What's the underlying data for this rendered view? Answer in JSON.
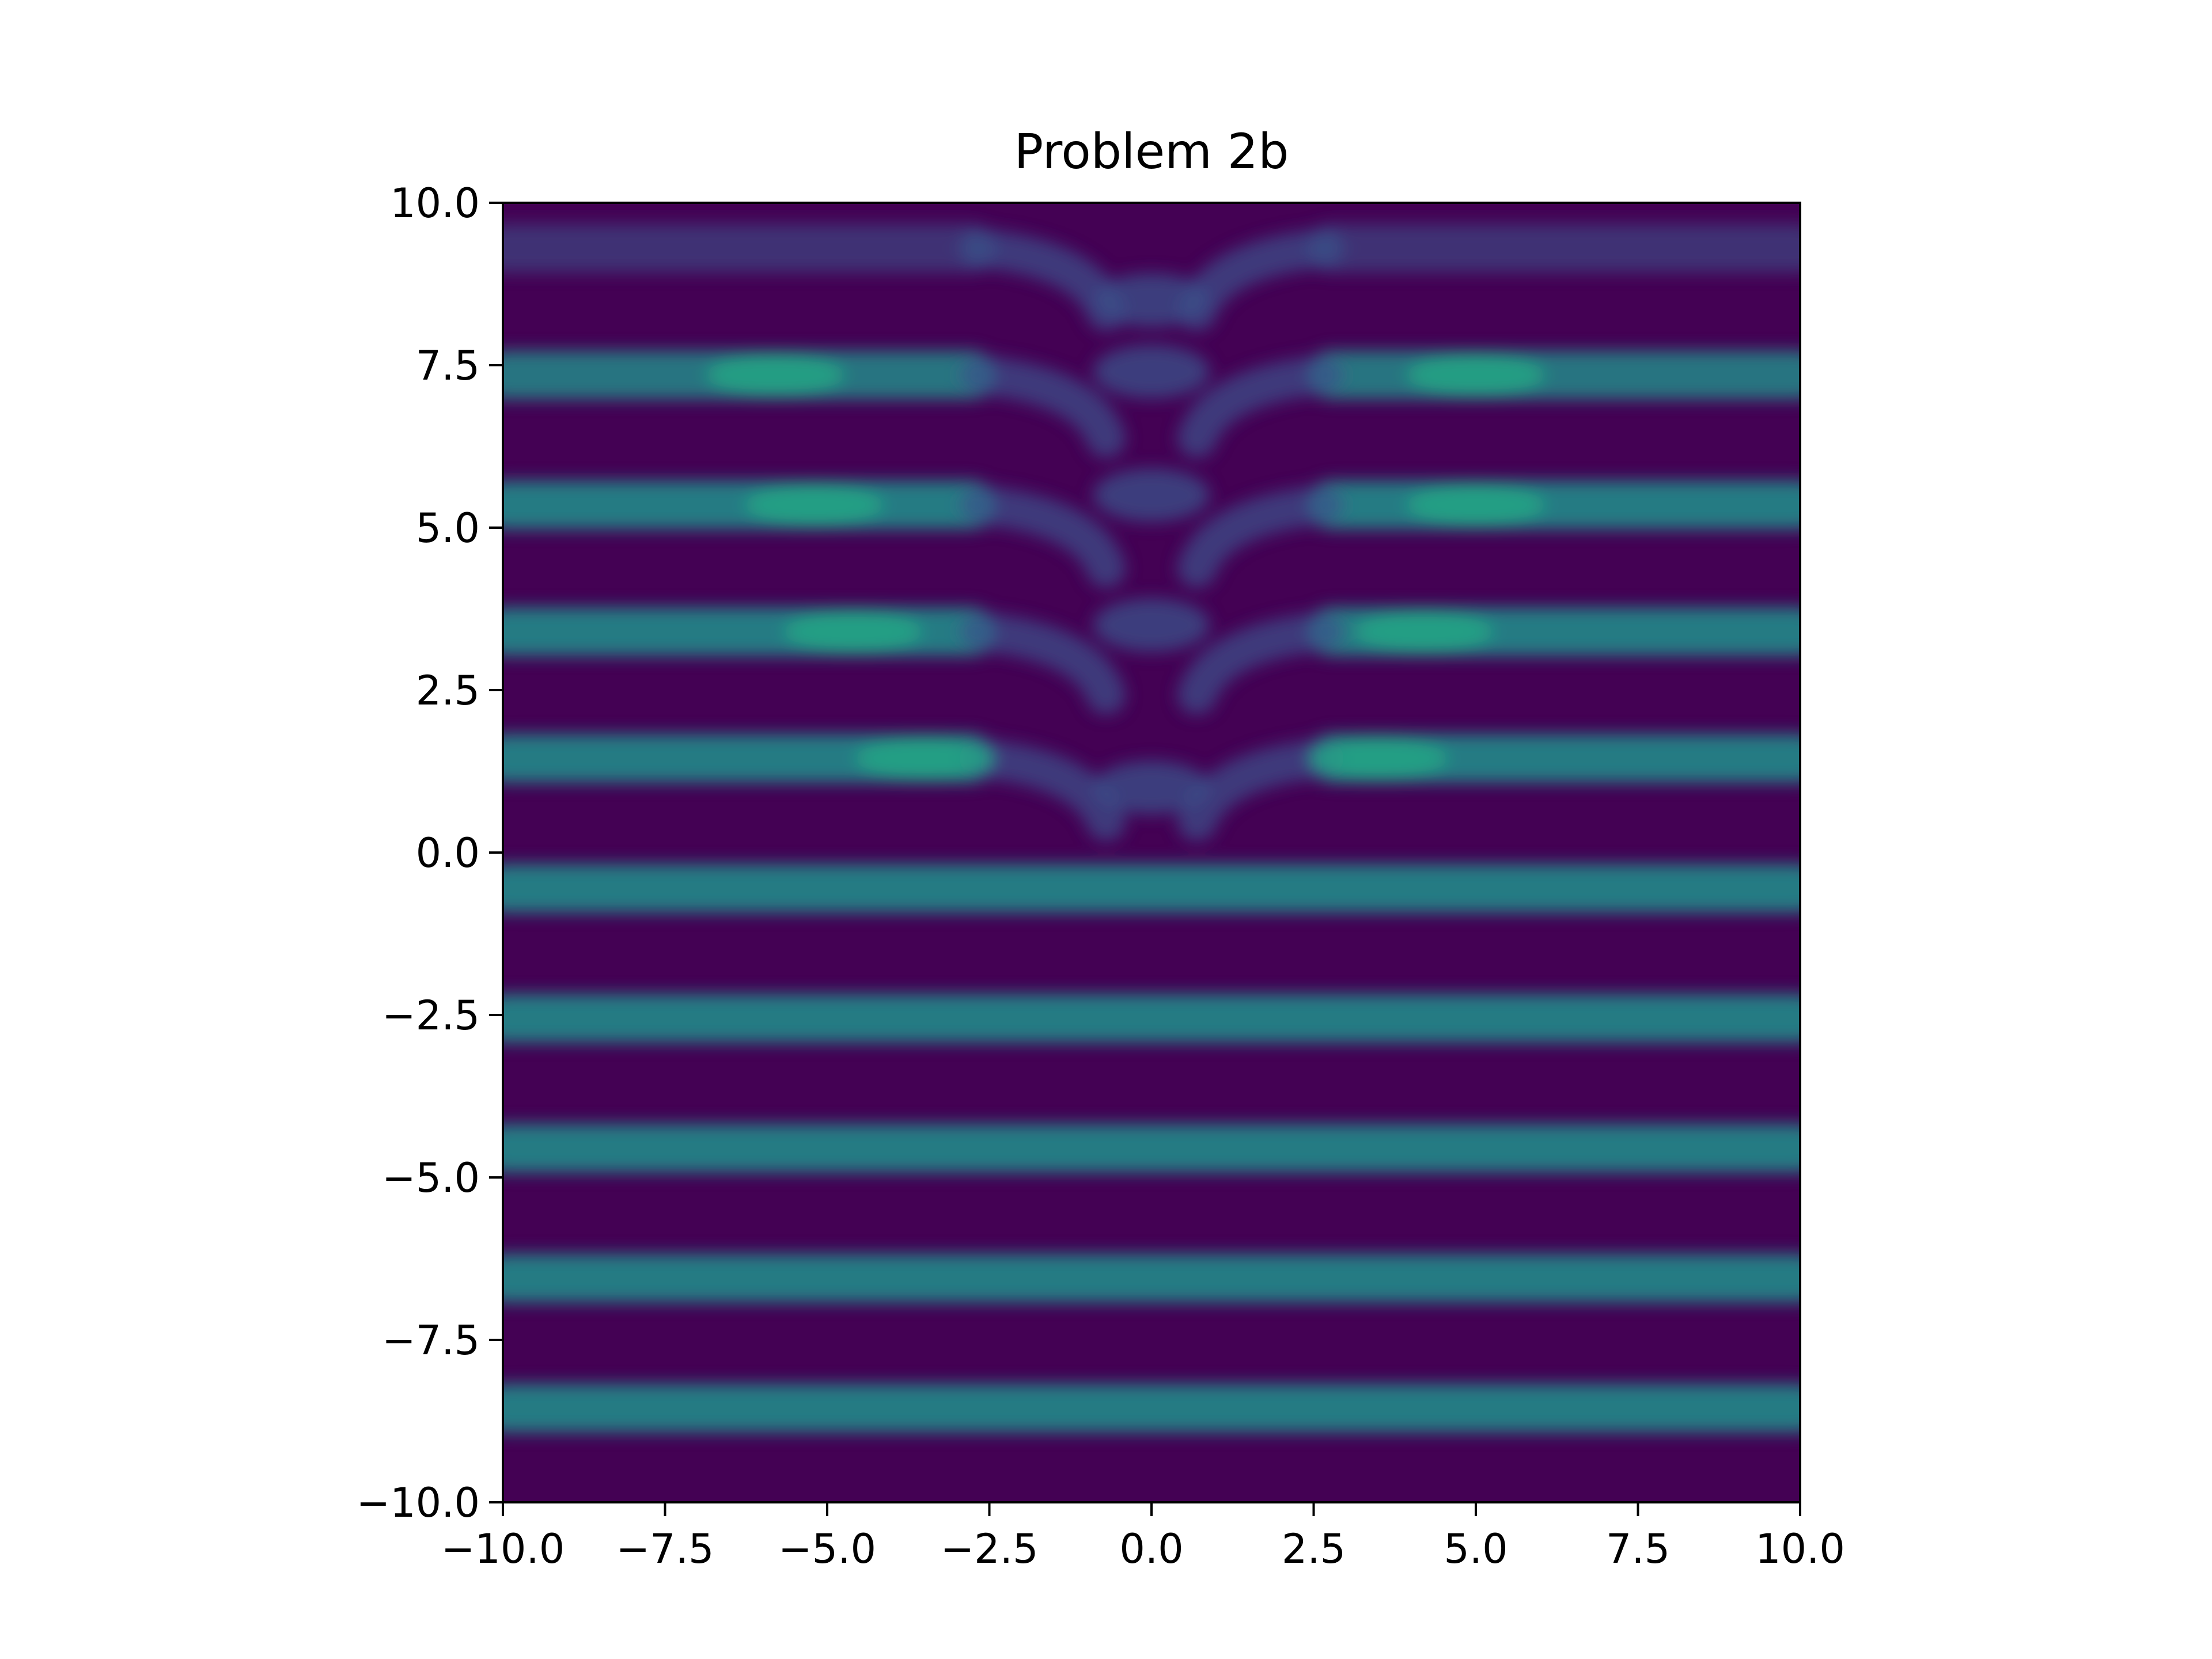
{
  "chart_data": {
    "type": "heatmap",
    "title": "Problem 2b",
    "xlabel": "",
    "ylabel": "",
    "xlim": [
      -10.0,
      10.0
    ],
    "ylim": [
      -10.0,
      10.0
    ],
    "xticks": [
      "−10.0",
      "−7.5",
      "−5.0",
      "−2.5",
      "0.0",
      "2.5",
      "5.0",
      "7.5",
      "10.0"
    ],
    "yticks": [
      "−10.0",
      "−7.5",
      "−5.0",
      "−2.5",
      "0.0",
      "2.5",
      "5.0",
      "7.5",
      "10.0"
    ],
    "xtick_values": [
      -10,
      -7.5,
      -5,
      -2.5,
      0,
      2.5,
      5,
      7.5,
      10
    ],
    "ytick_values": [
      -10,
      -7.5,
      -5,
      -2.5,
      0,
      2.5,
      5,
      7.5,
      10
    ],
    "colormap": "viridis",
    "colors": {
      "background": "#440154",
      "band": "#21918c",
      "band_bright": "#22a884",
      "band_dim": "#3b528b",
      "weak": "#472c7a"
    },
    "bands_below_zero": [
      {
        "y": -0.55,
        "intensity": 0.85
      },
      {
        "y": -2.55,
        "intensity": 0.85
      },
      {
        "y": -4.55,
        "intensity": 0.85
      },
      {
        "y": -6.55,
        "intensity": 0.85
      },
      {
        "y": -8.55,
        "intensity": 0.85
      }
    ],
    "bands_above_zero": [
      {
        "y": 1.45,
        "center_y": 2.4,
        "intensity": 0.85
      },
      {
        "y": 3.4,
        "center_y": 4.9,
        "intensity": 0.85
      },
      {
        "y": 5.35,
        "center_y": 6.9,
        "intensity": 0.85
      },
      {
        "y": 7.35,
        "center_y": 8.8,
        "intensity": 0.8
      },
      {
        "y": 9.3,
        "center_y": 9.9,
        "intensity": 0.6
      }
    ],
    "grid": false,
    "legend": "none"
  }
}
